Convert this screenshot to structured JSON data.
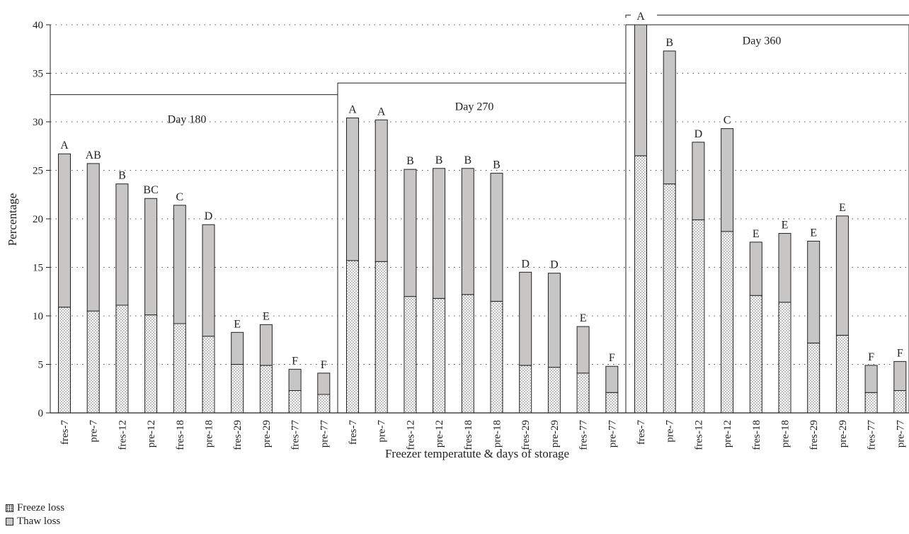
{
  "chart_data": {
    "type": "bar",
    "stacked": true,
    "ylabel": "Percentage",
    "xlabel": "Freezer temperatute & days of storage",
    "ylim": [
      0,
      40
    ],
    "yticks": [
      0,
      5,
      10,
      15,
      20,
      25,
      30,
      35,
      40
    ],
    "grid": "horizontal dotted",
    "legend_position": "bottom-left",
    "colors": {
      "freeze": "#ffffff",
      "thaw": "#c8c5c5",
      "axis": "#222222"
    },
    "series": [
      {
        "name": "Freeze loss",
        "pattern": "dotted"
      },
      {
        "name": "Thaw loss",
        "pattern": "gray"
      }
    ],
    "groups": [
      {
        "label": "Day 180",
        "categories": [
          "fres-7",
          "pre-7",
          "fres-12",
          "pre-12",
          "fres-18",
          "pre-18",
          "fres-29",
          "pre-29",
          "fres-77",
          "pre-77"
        ],
        "freeze": [
          10.9,
          10.5,
          11.1,
          10.1,
          9.2,
          7.9,
          5.0,
          4.9,
          2.3,
          1.9
        ],
        "total": [
          26.7,
          25.7,
          23.6,
          22.1,
          21.4,
          19.4,
          8.3,
          9.1,
          4.5,
          4.1
        ],
        "letters": [
          "A",
          "AB",
          "B",
          "BC",
          "C",
          "D",
          "E",
          "E",
          "F",
          "F"
        ]
      },
      {
        "label": "Day 270",
        "categories": [
          "fres-7",
          "pre-7",
          "fres-12",
          "pre-12",
          "fres-18",
          "pre-18",
          "fres-29",
          "pre-29",
          "fres-77",
          "pre-77"
        ],
        "freeze": [
          15.7,
          15.6,
          12.0,
          11.8,
          12.2,
          11.5,
          4.9,
          4.7,
          4.1,
          2.1
        ],
        "total": [
          30.4,
          30.2,
          25.1,
          25.2,
          25.2,
          24.7,
          14.5,
          14.4,
          8.9,
          4.8
        ],
        "letters": [
          "A",
          "A",
          "B",
          "B",
          "B",
          "B",
          "D",
          "D",
          "E",
          "F"
        ]
      },
      {
        "label": "Day 360",
        "categories": [
          "fres-7",
          "pre-7",
          "fres-12",
          "pre-12",
          "fres-18",
          "pre-18",
          "fres-29",
          "pre-29",
          "fres-77",
          "pre-77"
        ],
        "freeze": [
          26.5,
          23.6,
          19.9,
          18.7,
          12.1,
          11.4,
          7.2,
          8.0,
          2.1,
          2.3
        ],
        "total": [
          40.0,
          37.3,
          27.9,
          29.3,
          17.6,
          18.5,
          17.7,
          20.3,
          4.9,
          5.3
        ],
        "letters": [
          "A",
          "B",
          "D",
          "C",
          "E",
          "E",
          "E",
          "E",
          "F",
          "F"
        ]
      }
    ]
  }
}
